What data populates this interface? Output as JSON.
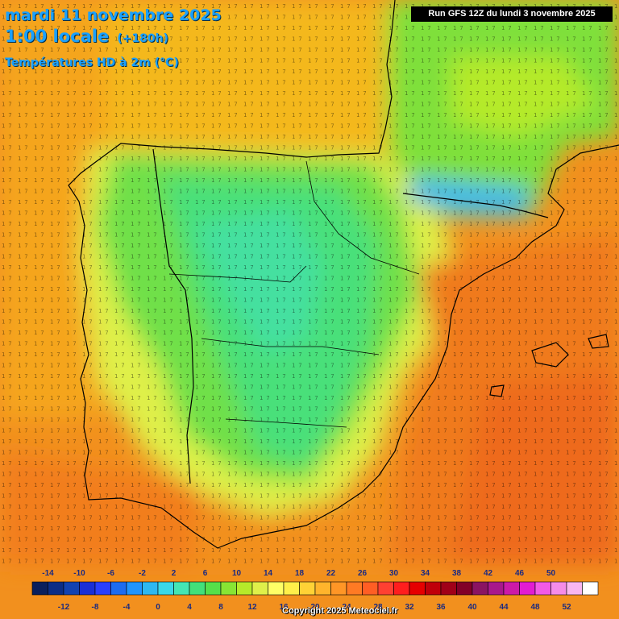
{
  "header": {
    "date_line": "mardi 11 novembre 2025",
    "time_line": "1:00 locale",
    "lead_time": "(+180h)",
    "variable": "Températures HD à 2m (°C)",
    "run_info": "Run GFS 12Z du lundi 3 novembre 2025"
  },
  "legend": {
    "colors": [
      "#0a1f5c",
      "#0b2d86",
      "#1242b0",
      "#1a2fd6",
      "#2a3fff",
      "#1d6cf0",
      "#2095ff",
      "#2eb8f0",
      "#3ad8e8",
      "#44e6b4",
      "#42e07a",
      "#55e04a",
      "#88e534",
      "#b6ea2a",
      "#dff04a",
      "#ffff66",
      "#fff04a",
      "#ffd236",
      "#ffb42c",
      "#ff9626",
      "#ff7a24",
      "#ff5e24",
      "#ff4032",
      "#ff1e1e",
      "#e60000",
      "#c0000a",
      "#a00018",
      "#820028",
      "#8a1462",
      "#a8188c",
      "#cc1aa8",
      "#e21cd2",
      "#f25ae6",
      "#f58ce8",
      "#f8b6f0",
      "#ffffff"
    ],
    "top_labels": [
      "-14",
      "-10",
      "-6",
      "-2",
      "2",
      "6",
      "10",
      "14",
      "18",
      "22",
      "26",
      "30",
      "34",
      "38",
      "42",
      "46",
      "50"
    ],
    "bottom_labels": [
      "-12",
      "-8",
      "-4",
      "0",
      "4",
      "8",
      "12",
      "16",
      "20",
      "24",
      "28",
      "32",
      "36",
      "40",
      "44",
      "48",
      "52"
    ]
  },
  "footer": {
    "copyright": "Copyright 2025 Meteociel.fr"
  }
}
